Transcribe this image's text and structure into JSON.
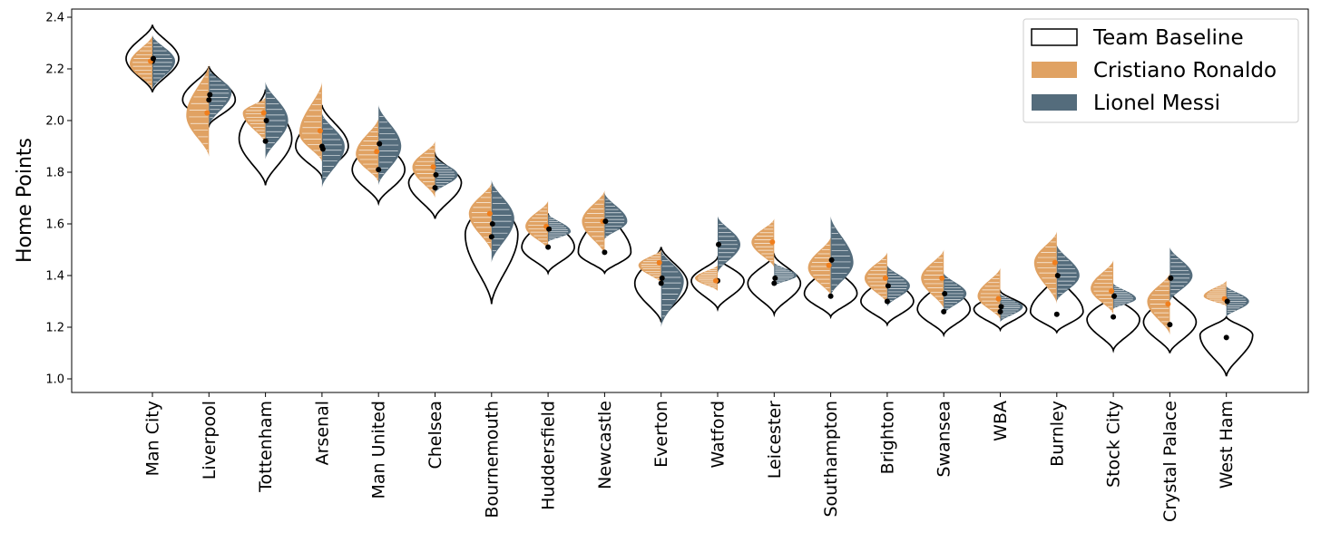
{
  "chart_data": {
    "type": "violin",
    "ylabel": "Home Points",
    "xlabel": "",
    "ylim": [
      0.95,
      2.42
    ],
    "yticks": [
      "1.0",
      "1.2",
      "1.4",
      "1.6",
      "1.8",
      "2.0",
      "2.2",
      "2.4"
    ],
    "grid": false,
    "legend_position": "top-right",
    "categories": [
      "Man City",
      "Liverpool",
      "Tottenham",
      "Arsenal",
      "Man United",
      "Chelsea",
      "Bournemouth",
      "Huddersfield",
      "Newcastle",
      "Everton",
      "Watford",
      "Leicester",
      "Southampton",
      "Brighton",
      "Swansea",
      "WBA",
      "Burnley",
      "Stock City",
      "Crystal Palace",
      "West Ham"
    ],
    "series": [
      {
        "name": "Team Baseline",
        "color": "#ffffff",
        "edge_color": "#000000",
        "min": [
          2.11,
          1.98,
          1.75,
          1.78,
          1.68,
          1.62,
          1.29,
          1.41,
          1.41,
          1.22,
          1.27,
          1.25,
          1.24,
          1.21,
          1.17,
          1.19,
          1.18,
          1.11,
          1.1,
          1.01
        ],
        "max": [
          2.37,
          2.21,
          2.12,
          2.06,
          1.95,
          1.87,
          1.73,
          1.64,
          1.68,
          1.51,
          1.47,
          1.48,
          1.45,
          1.41,
          1.39,
          1.34,
          1.41,
          1.33,
          1.34,
          1.24
        ],
        "mode": [
          2.24,
          2.08,
          1.93,
          1.9,
          1.81,
          1.76,
          1.56,
          1.51,
          1.49,
          1.37,
          1.38,
          1.37,
          1.33,
          1.3,
          1.27,
          1.27,
          1.26,
          1.23,
          1.22,
          1.17
        ],
        "median": [
          2.23,
          2.08,
          1.92,
          1.9,
          1.81,
          1.74,
          1.55,
          1.51,
          1.49,
          1.37,
          1.38,
          1.37,
          1.32,
          1.3,
          1.26,
          1.26,
          1.25,
          1.24,
          1.21,
          1.16
        ]
      },
      {
        "name": "Cristiano Ronaldo",
        "color": "#e0a263",
        "min": [
          2.12,
          1.86,
          1.91,
          1.84,
          1.76,
          1.7,
          1.49,
          1.5,
          1.48,
          1.37,
          1.34,
          1.43,
          1.32,
          1.29,
          1.27,
          1.23,
          1.29,
          1.25,
          1.17,
          1.28
        ],
        "max": [
          2.33,
          2.22,
          2.09,
          2.15,
          2.01,
          1.92,
          1.76,
          1.69,
          1.73,
          1.5,
          1.44,
          1.62,
          1.55,
          1.49,
          1.5,
          1.43,
          1.57,
          1.46,
          1.41,
          1.38
        ],
        "mode": [
          2.22,
          2.02,
          2.03,
          1.95,
          1.87,
          1.82,
          1.64,
          1.59,
          1.61,
          1.44,
          1.39,
          1.53,
          1.43,
          1.39,
          1.39,
          1.32,
          1.45,
          1.35,
          1.3,
          1.32
        ],
        "median": [
          2.23,
          2.03,
          2.03,
          1.96,
          1.88,
          1.82,
          1.64,
          1.59,
          1.61,
          1.45,
          1.38,
          1.53,
          1.44,
          1.39,
          1.39,
          1.31,
          1.45,
          1.34,
          1.29,
          1.31
        ]
      },
      {
        "name": "Lionel Messi",
        "color": "#546c7c",
        "min": [
          2.12,
          1.98,
          1.85,
          1.74,
          1.75,
          1.72,
          1.45,
          1.53,
          1.54,
          1.2,
          1.41,
          1.36,
          1.32,
          1.28,
          1.25,
          1.22,
          1.3,
          1.27,
          1.3,
          1.24
        ],
        "max": [
          2.33,
          2.2,
          2.15,
          2.03,
          2.06,
          1.86,
          1.77,
          1.64,
          1.72,
          1.5,
          1.63,
          1.45,
          1.63,
          1.44,
          1.41,
          1.33,
          1.52,
          1.37,
          1.51,
          1.36
        ],
        "mode": [
          2.23,
          2.11,
          2.0,
          1.9,
          1.9,
          1.79,
          1.62,
          1.57,
          1.61,
          1.38,
          1.52,
          1.4,
          1.45,
          1.36,
          1.33,
          1.28,
          1.4,
          1.31,
          1.4,
          1.3
        ],
        "median": [
          2.24,
          2.1,
          2.0,
          1.89,
          1.91,
          1.79,
          1.6,
          1.58,
          1.61,
          1.39,
          1.52,
          1.39,
          1.46,
          1.36,
          1.33,
          1.28,
          1.4,
          1.32,
          1.39,
          1.3
        ]
      }
    ]
  }
}
